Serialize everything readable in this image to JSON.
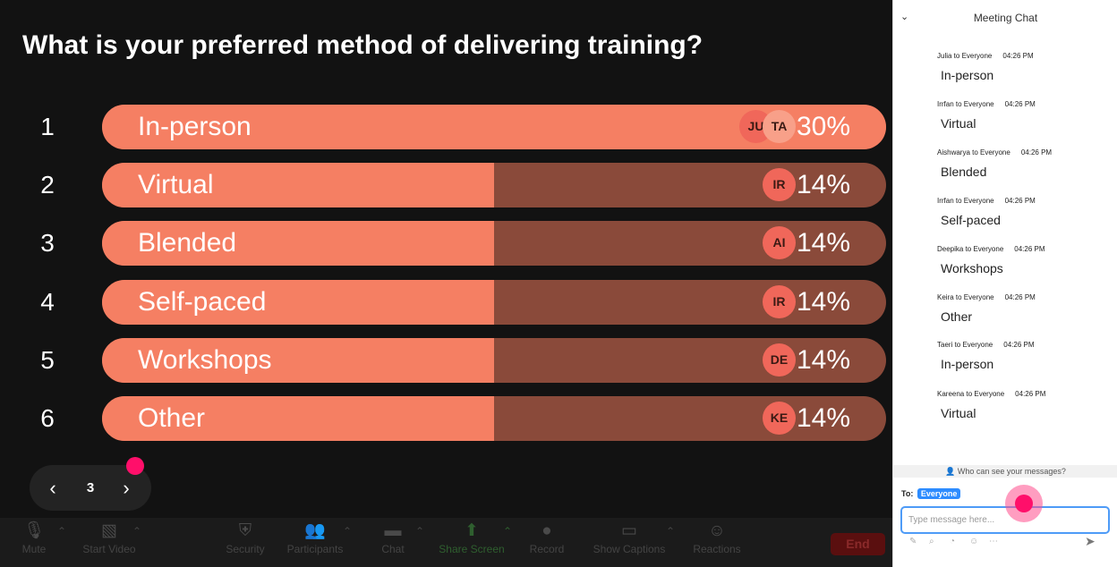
{
  "poll": {
    "question": "What is your preferred method of delivering training?",
    "options": [
      {
        "num": "1",
        "label": "In-person",
        "percent": "30%",
        "fill_fraction": 1.0,
        "avatars": [
          "JU",
          "TA"
        ]
      },
      {
        "num": "2",
        "label": "Virtual",
        "percent": "14%",
        "fill_fraction": 0.5,
        "avatars": [
          "IR"
        ]
      },
      {
        "num": "3",
        "label": "Blended",
        "percent": "14%",
        "fill_fraction": 0.5,
        "avatars": [
          "AI"
        ]
      },
      {
        "num": "4",
        "label": "Self-paced",
        "percent": "14%",
        "fill_fraction": 0.5,
        "avatars": [
          "IR"
        ]
      },
      {
        "num": "5",
        "label": "Workshops",
        "percent": "14%",
        "fill_fraction": 0.5,
        "avatars": [
          "DE"
        ]
      },
      {
        "num": "6",
        "label": "Other",
        "percent": "14%",
        "fill_fraction": 0.5,
        "avatars": [
          "KE"
        ]
      }
    ]
  },
  "pager": {
    "prev": "‹",
    "page": "3",
    "next": "›"
  },
  "toolbar": {
    "mute": "Mute",
    "start_video": "Start Video",
    "security": "Security",
    "participants": "Participants",
    "chat": "Chat",
    "share_screen": "Share Screen",
    "record": "Record",
    "show_captions": "Show Captions",
    "reactions": "Reactions",
    "end": "End"
  },
  "chat": {
    "title": "Meeting Chat",
    "collapse_icon": "chevron-down-icon",
    "messages": [
      {
        "sender": "Julia to Everyone",
        "time": "04:26 PM",
        "text": "In-person"
      },
      {
        "sender": "Irrfan to Everyone",
        "time": "04:26 PM",
        "text": "Virtual"
      },
      {
        "sender": "Aishwarya to Everyone",
        "time": "04:26 PM",
        "text": "Blended"
      },
      {
        "sender": "Irrfan to Everyone",
        "time": "04:26 PM",
        "text": "Self-paced"
      },
      {
        "sender": "Deepika to Everyone",
        "time": "04:26 PM",
        "text": "Workshops"
      },
      {
        "sender": "Keira to Everyone",
        "time": "04:26 PM",
        "text": "Other"
      },
      {
        "sender": "Taeri to Everyone",
        "time": "04:26 PM",
        "text": "In-person"
      },
      {
        "sender": "Kareena to Everyone",
        "time": "04:26 PM",
        "text": "Virtual"
      }
    ],
    "who_can_see": "Who can see your messages?",
    "to_label": "To:",
    "to_value": "Everyone",
    "input_placeholder": "Type message here..."
  },
  "colors": {
    "bar_fill": "#f57f63",
    "bar_track": "#8a4a3a",
    "accent_pink": "#ff0f6a",
    "chat_accent": "#2d8cff"
  }
}
